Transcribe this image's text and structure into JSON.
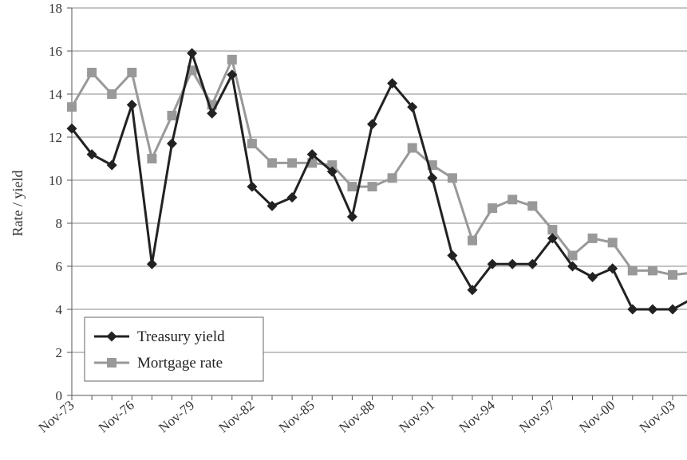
{
  "chart_data": {
    "type": "line",
    "ylabel": "Rate / yield",
    "ylim": [
      0,
      18
    ],
    "yticks": [
      0,
      2,
      4,
      6,
      8,
      10,
      12,
      14,
      16,
      18
    ],
    "grid": "horizontal",
    "legend_position": "bottom-left",
    "x": [
      "Nov-73",
      "Nov-74",
      "Nov-75",
      "Nov-76",
      "Nov-77",
      "Nov-78",
      "Nov-79",
      "Nov-80",
      "Nov-81",
      "Nov-82",
      "Nov-83",
      "Nov-84",
      "Nov-85",
      "Nov-86",
      "Nov-87",
      "Nov-88",
      "Nov-89",
      "Nov-90",
      "Nov-91",
      "Nov-92",
      "Nov-93",
      "Nov-94",
      "Nov-95",
      "Nov-96",
      "Nov-97",
      "Nov-98",
      "Nov-99",
      "Nov-00",
      "Nov-01",
      "Nov-02",
      "Nov-03",
      "Nov-04"
    ],
    "xtick_labels": [
      "Nov-73",
      "Nov-76",
      "Nov-79",
      "Nov-82",
      "Nov-85",
      "Nov-88",
      "Nov-91",
      "Nov-94",
      "Nov-97",
      "Nov-00",
      "Nov-03"
    ],
    "series": [
      {
        "name": "Treasury yield",
        "color": "#222222",
        "marker": "diamond",
        "values": [
          12.4,
          11.2,
          10.7,
          13.5,
          6.1,
          11.7,
          15.9,
          13.1,
          14.9,
          9.7,
          8.8,
          9.2,
          11.2,
          10.4,
          8.3,
          12.6,
          14.5,
          13.4,
          10.1,
          6.5,
          4.9,
          6.1,
          6.1,
          6.1,
          7.3,
          6.0,
          5.5,
          5.9,
          4.0,
          4.0,
          4.0,
          4.5
        ]
      },
      {
        "name": "Mortgage rate",
        "color": "#999999",
        "marker": "square",
        "values": [
          13.4,
          15.0,
          14.0,
          15.0,
          11.0,
          13.0,
          15.1,
          13.5,
          15.6,
          11.7,
          10.8,
          10.8,
          10.8,
          10.7,
          9.7,
          9.7,
          10.1,
          11.5,
          10.7,
          10.1,
          7.2,
          8.7,
          9.1,
          8.8,
          7.7,
          6.5,
          7.3,
          7.1,
          5.8,
          5.8,
          5.6,
          5.7
        ]
      }
    ]
  }
}
